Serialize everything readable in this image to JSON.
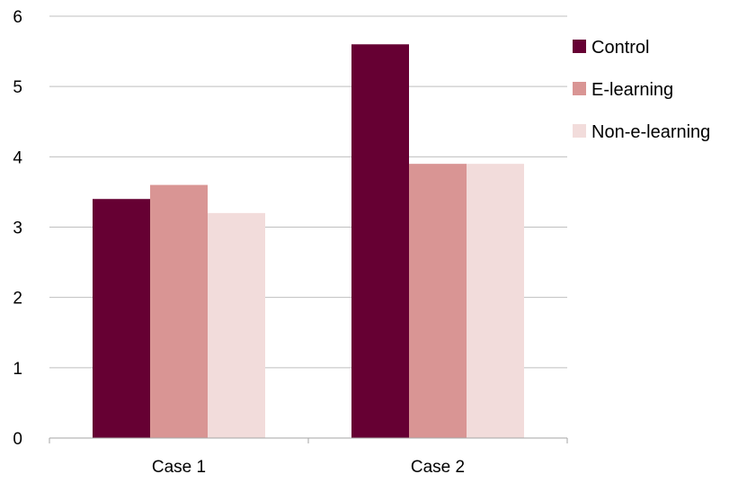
{
  "chart_data": {
    "type": "bar",
    "categories": [
      "Case 1",
      "Case 2"
    ],
    "series": [
      {
        "name": "Control",
        "values": [
          3.4,
          5.6
        ],
        "color": "#660033"
      },
      {
        "name": "E-learning",
        "values": [
          3.6,
          3.9
        ],
        "color": "#d99594"
      },
      {
        "name": "Non-e-learning",
        "values": [
          3.2,
          3.9
        ],
        "color": "#f2dcdb"
      }
    ],
    "title": "",
    "xlabel": "",
    "ylabel": "",
    "ylim": [
      0,
      6
    ],
    "yticks": [
      "0",
      "1",
      "2",
      "3",
      "4",
      "5",
      "6"
    ],
    "grid": true,
    "legend_position": "right"
  }
}
